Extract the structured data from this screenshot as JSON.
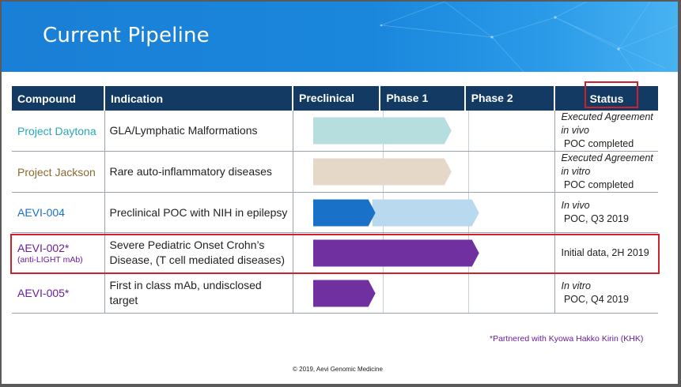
{
  "title": "Current Pipeline",
  "columns": [
    "Compound",
    "Indication",
    "Preclinical",
    "Phase 1",
    "Phase 2",
    "Status"
  ],
  "rows": [
    {
      "compound": "Project Daytona",
      "compound_sub": "",
      "compound_color": "#2aa7b5",
      "indication": "GLA/Lymphatic Malformations",
      "status_italic": "Executed Agreement",
      "status_line2_italic": "in vivo",
      "status_line2_rest": " POC completed",
      "progress_start": 0.0,
      "progress_end": 0.4,
      "bar_color": "#b6dede",
      "bar2_color": ""
    },
    {
      "compound": "Project Jackson",
      "compound_sub": "",
      "compound_color": "#8a6a2e",
      "indication": "Rare auto-inflammatory diseases",
      "status_italic": "Executed Agreement",
      "status_line2_italic": "in vitro",
      "status_line2_rest": " POC completed",
      "progress_start": 0.0,
      "progress_end": 0.4,
      "bar_color": "#e5d8c8",
      "bar2_color": ""
    },
    {
      "compound": "AEVI-004",
      "compound_sub": "",
      "compound_color": "#1a6fc4",
      "indication": "Preclinical POC with NIH in epilepsy",
      "status_italic": "In vivo",
      "status_rest": " POC, Q3 2019",
      "progress_start": 0.0,
      "progress_end": 0.48,
      "progress_split": 0.18,
      "bar_color": "#1a72c8",
      "bar2_color": "#b9d9ef"
    },
    {
      "compound": "AEVI-002*",
      "compound_sub": "(anti-LIGHT mAb)",
      "compound_color": "#6a1d9a",
      "indication_line1": "Severe Pediatric Onset Crohn’s",
      "indication_line2": "Disease, (T cell mediated diseases)",
      "status_plain": "Initial data, 2H 2019",
      "progress_start": 0.0,
      "progress_end": 0.48,
      "bar_color": "#7030a0",
      "bar2_color": ""
    },
    {
      "compound": "AEVI-005*",
      "compound_sub": "",
      "compound_color": "#6a1d9a",
      "indication_line1": "First in class mAb, undisclosed",
      "indication_line2": "target",
      "status_italic": "In vitro",
      "status_rest": " POC, Q4 2019",
      "progress_start": 0.0,
      "progress_end": 0.18,
      "bar_color": "#7030a0",
      "bar2_color": ""
    }
  ],
  "footnote": "*Partnered with Kyowa Hakko Kirin (KHK)",
  "copyright": "© 2019,  Aevi Genomic Medicine"
}
